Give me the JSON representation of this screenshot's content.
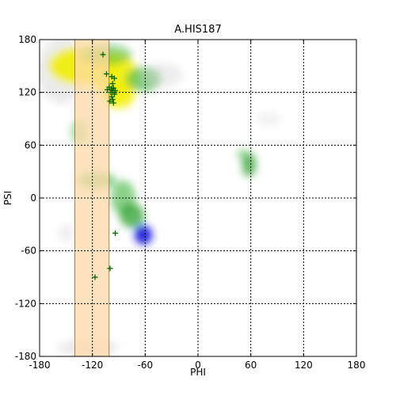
{
  "chart_data": {
    "type": "scatter",
    "title": "A.HIS187",
    "xlabel": "PHI",
    "ylabel": "PSI",
    "xlim": [
      -180,
      180
    ],
    "ylim": [
      -180,
      180
    ],
    "xticks": [
      -180,
      -120,
      -60,
      0,
      60,
      120,
      180
    ],
    "yticks": [
      180,
      120,
      60,
      0,
      -60,
      -120,
      -180
    ],
    "xtick_labels": [
      "-180",
      "-120",
      "-60",
      "0",
      "60",
      "120",
      "180"
    ],
    "ytick_labels": [
      "180",
      "120",
      "60",
      "0",
      "-60",
      "-120",
      "-180"
    ],
    "grid": true,
    "highlight_band": {
      "x_range": [
        -140,
        -101
      ],
      "color": "#fdd9a8"
    },
    "density_regions": [
      {
        "shape": "ellipse",
        "cx": -155,
        "cy": 145,
        "rx": 28,
        "ry": 38,
        "color": "#d8d8d8",
        "opacity": 0.5
      },
      {
        "shape": "ellipse",
        "cx": -130,
        "cy": 150,
        "rx": 40,
        "ry": 22,
        "color": "#f2f000",
        "opacity": 0.9
      },
      {
        "shape": "ellipse",
        "cx": -95,
        "cy": 140,
        "rx": 25,
        "ry": 25,
        "color": "#f2f000",
        "opacity": 0.9
      },
      {
        "shape": "ellipse",
        "cx": -90,
        "cy": 118,
        "rx": 18,
        "ry": 16,
        "color": "#f2f000",
        "opacity": 0.85
      },
      {
        "shape": "ellipse",
        "cx": -62,
        "cy": 135,
        "rx": 20,
        "ry": 14,
        "color": "#4cb84c",
        "opacity": 0.7
      },
      {
        "shape": "ellipse",
        "cx": -105,
        "cy": 163,
        "rx": 30,
        "ry": 12,
        "color": "#4cb84c",
        "opacity": 0.55
      },
      {
        "shape": "ellipse",
        "cx": -135,
        "cy": 75,
        "rx": 10,
        "ry": 14,
        "color": "#4cb84c",
        "opacity": 0.45
      },
      {
        "shape": "ellipse",
        "cx": -115,
        "cy": 20,
        "rx": 22,
        "ry": 10,
        "color": "#4cb84c",
        "opacity": 0.6
      },
      {
        "shape": "ellipse",
        "cx": -85,
        "cy": 0,
        "rx": 14,
        "ry": 20,
        "color": "#4cb84c",
        "opacity": 0.65
      },
      {
        "shape": "ellipse",
        "cx": -75,
        "cy": -20,
        "rx": 14,
        "ry": 14,
        "color": "#2fa02f",
        "opacity": 0.75
      },
      {
        "shape": "ellipse",
        "cx": -62,
        "cy": -42,
        "rx": 10,
        "ry": 11,
        "color": "#1a1adc",
        "opacity": 0.95
      },
      {
        "shape": "ellipse",
        "cx": 58,
        "cy": 38,
        "rx": 8,
        "ry": 14,
        "color": "#2fa02f",
        "opacity": 0.75
      },
      {
        "shape": "ellipse",
        "cx": 50,
        "cy": 50,
        "rx": 6,
        "ry": 6,
        "color": "#4cb84c",
        "opacity": 0.5
      },
      {
        "shape": "ellipse",
        "cx": -40,
        "cy": 140,
        "rx": 22,
        "ry": 14,
        "color": "#d8d8d8",
        "opacity": 0.45
      },
      {
        "shape": "ellipse",
        "cx": -125,
        "cy": -170,
        "rx": 35,
        "ry": 10,
        "color": "#d8d8d8",
        "opacity": 0.5
      },
      {
        "shape": "ellipse",
        "cx": 80,
        "cy": 90,
        "rx": 15,
        "ry": 8,
        "color": "#d8d8d8",
        "opacity": 0.3
      },
      {
        "shape": "ellipse",
        "cx": -150,
        "cy": -40,
        "rx": 8,
        "ry": 10,
        "color": "#d8d8d8",
        "opacity": 0.4
      }
    ],
    "series": [
      {
        "color": "#006400",
        "marker": "+",
        "points": [
          [
            -108,
            163
          ],
          [
            -104,
            141
          ],
          [
            -98,
            138
          ],
          [
            -95,
            136
          ],
          [
            -101,
            126
          ],
          [
            -98,
            124
          ],
          [
            -97,
            122
          ],
          [
            -96,
            125
          ],
          [
            -99,
            120
          ],
          [
            -95,
            118
          ],
          [
            -98,
            115
          ],
          [
            -97,
            112
          ],
          [
            -96,
            108
          ],
          [
            -100,
            110
          ],
          [
            -94,
            122
          ],
          [
            -103,
            123
          ],
          [
            -97,
            130
          ],
          [
            -94,
            -40
          ],
          [
            -100,
            -80
          ],
          [
            -117,
            -90
          ]
        ]
      }
    ]
  }
}
